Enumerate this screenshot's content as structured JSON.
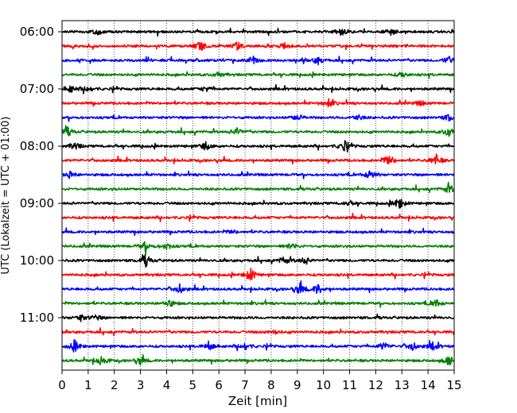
{
  "chart_data": {
    "type": "line",
    "title": "",
    "xlabel": "Zeit  [min]",
    "ylabel": "UTC (Lokalzeit = UTC + 01:00)",
    "xlim": [
      0,
      15
    ],
    "x_ticks": [
      0,
      1,
      2,
      3,
      4,
      5,
      6,
      7,
      8,
      9,
      10,
      11,
      12,
      13,
      14,
      15
    ],
    "y_ticks": [
      "06:00",
      "07:00",
      "08:00",
      "09:00",
      "10:00",
      "11:00"
    ],
    "grid": "vertical dotted",
    "trace_interval_minutes": 15,
    "trace_colors": [
      "#000000",
      "#ff0000",
      "#0000ff",
      "#008000"
    ],
    "series": [
      {
        "start": "06:00",
        "color": "#000000",
        "bursts": [
          [
            1.3,
            0.6
          ],
          [
            10.7,
            0.5
          ],
          [
            12.6,
            0.5
          ]
        ]
      },
      {
        "start": "06:15",
        "color": "#ff0000",
        "bursts": [
          [
            5.3,
            0.8
          ],
          [
            6.7,
            0.6
          ],
          [
            8.5,
            0.4
          ]
        ]
      },
      {
        "start": "06:30",
        "color": "#0000ff",
        "bursts": [
          [
            7.3,
            0.7
          ],
          [
            9.8,
            0.6
          ],
          [
            14.8,
            0.6
          ]
        ]
      },
      {
        "start": "06:45",
        "color": "#008000",
        "bursts": [
          [
            6.0,
            0.4
          ],
          [
            13.0,
            0.4
          ]
        ]
      },
      {
        "start": "07:00",
        "color": "#000000",
        "bursts": [
          [
            0.3,
            0.6
          ],
          [
            1.0,
            0.5
          ],
          [
            5.5,
            0.4
          ]
        ]
      },
      {
        "start": "07:15",
        "color": "#ff0000",
        "bursts": [
          [
            10.2,
            0.6
          ],
          [
            13.7,
            0.4
          ]
        ]
      },
      {
        "start": "07:30",
        "color": "#0000ff",
        "bursts": [
          [
            9.0,
            0.5
          ],
          [
            11.3,
            0.5
          ],
          [
            14.8,
            0.5
          ]
        ]
      },
      {
        "start": "07:45",
        "color": "#008000",
        "bursts": [
          [
            0.2,
            0.7
          ],
          [
            6.7,
            0.6
          ],
          [
            14.8,
            0.7
          ]
        ]
      },
      {
        "start": "08:00",
        "color": "#000000",
        "bursts": [
          [
            0.5,
            0.6
          ],
          [
            5.5,
            0.6
          ],
          [
            10.8,
            0.8
          ]
        ]
      },
      {
        "start": "08:15",
        "color": "#ff0000",
        "bursts": [
          [
            12.5,
            0.9
          ],
          [
            14.3,
            0.9
          ]
        ]
      },
      {
        "start": "08:30",
        "color": "#0000ff",
        "bursts": [
          [
            0.3,
            0.5
          ],
          [
            11.8,
            0.8
          ]
        ]
      },
      {
        "start": "08:45",
        "color": "#008000",
        "bursts": [
          [
            14.8,
            0.7
          ]
        ]
      },
      {
        "start": "09:00",
        "color": "#000000",
        "bursts": [
          [
            12.9,
            0.9
          ],
          [
            11.0,
            0.4
          ]
        ]
      },
      {
        "start": "09:15",
        "color": "#ff0000",
        "bursts": []
      },
      {
        "start": "09:30",
        "color": "#0000ff",
        "bursts": [
          [
            6.5,
            0.3
          ]
        ]
      },
      {
        "start": "09:45",
        "color": "#008000",
        "bursts": [
          [
            3.2,
            0.7
          ],
          [
            4.0,
            0.5
          ],
          [
            8.8,
            0.5
          ]
        ]
      },
      {
        "start": "10:00",
        "color": "#000000",
        "bursts": [
          [
            3.2,
            0.9
          ],
          [
            8.5,
            0.6
          ],
          [
            9.3,
            0.6
          ]
        ]
      },
      {
        "start": "10:15",
        "color": "#ff0000",
        "bursts": [
          [
            7.2,
            1.0
          ]
        ]
      },
      {
        "start": "10:30",
        "color": "#0000ff",
        "bursts": [
          [
            4.5,
            0.7
          ],
          [
            9.1,
            0.9
          ],
          [
            9.8,
            0.8
          ]
        ]
      },
      {
        "start": "10:45",
        "color": "#008000",
        "bursts": [
          [
            4.1,
            0.6
          ],
          [
            14.3,
            0.6
          ]
        ]
      },
      {
        "start": "11:00",
        "color": "#000000",
        "bursts": [
          [
            0.7,
            0.5
          ],
          [
            1.3,
            0.4
          ]
        ]
      },
      {
        "start": "11:15",
        "color": "#ff0000",
        "bursts": [
          [
            8.1,
            0.3
          ]
        ]
      },
      {
        "start": "11:30",
        "color": "#0000ff",
        "bursts": [
          [
            0.5,
            0.8
          ],
          [
            5.6,
            0.7
          ],
          [
            7.0,
            0.6
          ],
          [
            12.3,
            0.6
          ],
          [
            13.4,
            0.7
          ],
          [
            14.2,
            0.6
          ]
        ]
      },
      {
        "start": "11:45",
        "color": "#008000",
        "bursts": [
          [
            1.5,
            0.8
          ],
          [
            3.0,
            0.6
          ],
          [
            14.8,
            0.8
          ]
        ]
      }
    ]
  }
}
